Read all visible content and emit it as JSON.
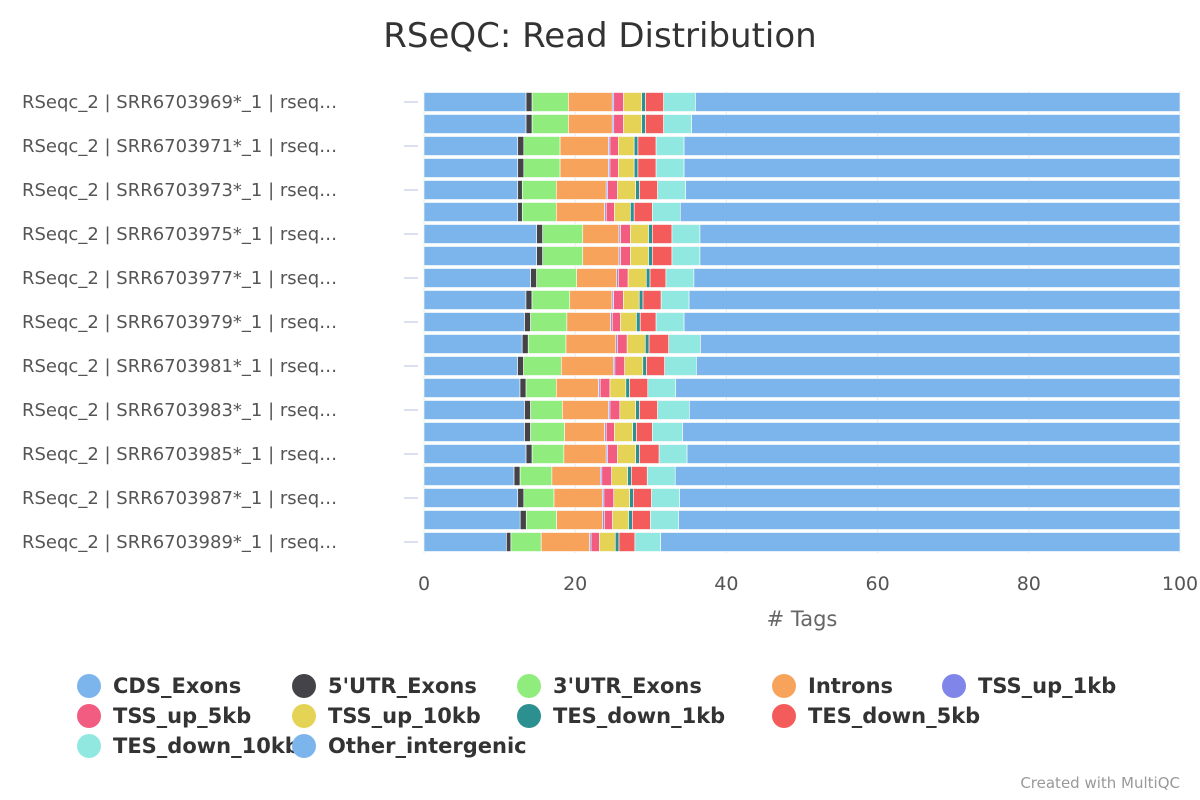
{
  "chart_data": {
    "type": "bar",
    "orientation": "horizontal",
    "stacked": true,
    "title": "RSeQC: Read Distribution",
    "xlabel": "# Tags",
    "xlim": [
      0,
      100
    ],
    "xticks": [
      0,
      20,
      40,
      60,
      80,
      100
    ],
    "grid": true,
    "legend_position": "bottom",
    "credit": "Created with MultiQC",
    "row_count": 21,
    "category_labels": [
      "RSeqc_2 | SRR6703969*_1 | rseq…",
      "RSeqc_2 | SRR6703971*_1 | rseq…",
      "RSeqc_2 | SRR6703973*_1 | rseq…",
      "RSeqc_2 | SRR6703975*_1 | rseq…",
      "RSeqc_2 | SRR6703977*_1 | rseq…",
      "RSeqc_2 | SRR6703979*_1 | rseq…",
      "RSeqc_2 | SRR6703981*_1 | rseq…",
      "RSeqc_2 | SRR6703983*_1 | rseq…",
      "RSeqc_2 | SRR6703985*_1 | rseq…",
      "RSeqc_2 | SRR6703987*_1 | rseq…",
      "RSeqc_2 | SRR6703989*_1 | rseq…"
    ],
    "labeled_rows": [
      0,
      2,
      4,
      6,
      8,
      10,
      12,
      14,
      16,
      18,
      20
    ],
    "series": [
      {
        "name": "CDS_Exons",
        "color": "#7cb5ec",
        "values": [
          13.5,
          13.5,
          12.4,
          12.4,
          12.4,
          12.4,
          14.9,
          14.9,
          14.1,
          13.5,
          13.3,
          13.0,
          12.4,
          12.7,
          13.3,
          13.3,
          13.5,
          11.9,
          12.4,
          12.7,
          10.9
        ]
      },
      {
        "name": "5'UTR_Exons",
        "color": "#434348",
        "values": [
          0.8,
          0.8,
          0.8,
          0.8,
          0.6,
          0.6,
          0.8,
          0.8,
          0.8,
          0.8,
          0.8,
          0.8,
          0.8,
          0.8,
          0.8,
          0.8,
          0.8,
          0.8,
          0.8,
          0.8,
          0.6
        ]
      },
      {
        "name": "3'UTR_Exons",
        "color": "#90ed7d",
        "values": [
          4.8,
          4.8,
          4.8,
          4.8,
          4.5,
          4.5,
          5.3,
          5.3,
          5.3,
          5.0,
          4.8,
          5.0,
          5.0,
          4.0,
          4.2,
          4.5,
          4.2,
          4.2,
          4.0,
          4.0,
          4.0
        ]
      },
      {
        "name": "Introns",
        "color": "#f7a35c",
        "values": [
          5.8,
          5.8,
          6.4,
          6.4,
          6.6,
          6.4,
          4.8,
          4.8,
          5.3,
          5.6,
          5.8,
          6.6,
          6.9,
          5.6,
          6.1,
          5.3,
          5.6,
          6.4,
          6.4,
          6.1,
          6.4
        ]
      },
      {
        "name": "TSS_up_1kb",
        "color": "#8085e9",
        "values": [
          0.2,
          0.2,
          0.2,
          0.2,
          0.2,
          0.2,
          0.2,
          0.2,
          0.2,
          0.2,
          0.2,
          0.2,
          0.2,
          0.2,
          0.2,
          0.2,
          0.2,
          0.2,
          0.2,
          0.2,
          0.2
        ]
      },
      {
        "name": "TSS_up_5kb",
        "color": "#f15c80",
        "values": [
          1.3,
          1.3,
          1.1,
          1.1,
          1.3,
          1.1,
          1.3,
          1.3,
          1.3,
          1.3,
          1.1,
          1.3,
          1.3,
          1.3,
          1.3,
          1.1,
          1.3,
          1.3,
          1.3,
          1.1,
          1.1
        ]
      },
      {
        "name": "TSS_up_10kb",
        "color": "#e4d354",
        "values": [
          2.4,
          2.4,
          2.1,
          2.1,
          2.4,
          2.1,
          2.4,
          2.4,
          2.4,
          2.1,
          2.1,
          2.4,
          2.4,
          2.1,
          2.1,
          2.4,
          2.4,
          2.1,
          2.1,
          2.1,
          2.1
        ]
      },
      {
        "name": "TES_down_1kb",
        "color": "#2b908f",
        "values": [
          0.5,
          0.5,
          0.5,
          0.5,
          0.5,
          0.5,
          0.5,
          0.5,
          0.5,
          0.5,
          0.5,
          0.5,
          0.5,
          0.5,
          0.5,
          0.5,
          0.5,
          0.5,
          0.5,
          0.5,
          0.5
        ]
      },
      {
        "name": "TES_down_5kb",
        "color": "#f45b5b",
        "values": [
          2.4,
          2.4,
          2.4,
          2.4,
          2.4,
          2.4,
          2.6,
          2.6,
          2.1,
          2.4,
          2.1,
          2.6,
          2.4,
          2.4,
          2.4,
          2.1,
          2.6,
          2.1,
          2.4,
          2.4,
          2.1
        ]
      },
      {
        "name": "TES_down_10kb",
        "color": "#91e8e1",
        "values": [
          4.2,
          3.7,
          3.7,
          3.7,
          3.7,
          3.7,
          3.7,
          3.7,
          3.7,
          3.7,
          3.7,
          4.2,
          4.2,
          3.7,
          4.2,
          4.0,
          3.7,
          3.7,
          3.7,
          3.7,
          3.4
        ]
      },
      {
        "name": "Other_intergenic",
        "color": "#7cb5ec",
        "values": [
          64.1,
          64.6,
          65.6,
          65.6,
          65.4,
          66.1,
          63.5,
          63.5,
          64.3,
          65.0,
          65.6,
          63.5,
          64.1,
          66.7,
          64.9,
          65.8,
          65.2,
          66.7,
          66.2,
          66.2,
          68.7
        ]
      }
    ]
  }
}
